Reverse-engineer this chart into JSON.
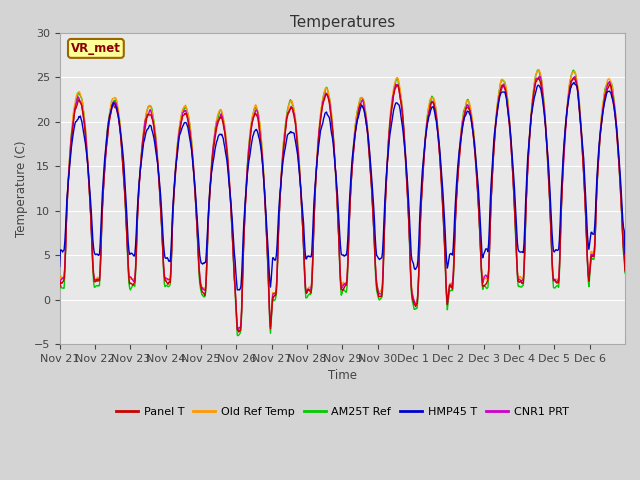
{
  "title": "Temperatures",
  "ylabel": "Temperature (C)",
  "xlabel": "Time",
  "ylim": [
    -5,
    30
  ],
  "plot_bg": "#e8e8e8",
  "fig_bg": "#d4d4d4",
  "series": [
    "Panel T",
    "Old Ref Temp",
    "AM25T Ref",
    "HMP45 T",
    "CNR1 PRT"
  ],
  "colors": [
    "#cc0000",
    "#ff9900",
    "#00cc00",
    "#0000cc",
    "#cc00cc"
  ],
  "linewidth": 1.0,
  "station_label": "VR_met",
  "x_tick_labels": [
    "Nov 21",
    "Nov 22",
    "Nov 23",
    "Nov 24",
    "Nov 25",
    "Nov 26",
    "Nov 27",
    "Nov 28",
    "Nov 29",
    "Nov 30",
    "Dec 1",
    "Dec 2",
    "Dec 3",
    "Dec 4",
    "Dec 5",
    "Dec 6"
  ],
  "num_days": 16,
  "daily_mins_base": [
    2.0,
    2.0,
    2.0,
    2.0,
    1.0,
    -3.5,
    0.5,
    1.0,
    1.5,
    0.5,
    -0.5,
    1.5,
    2.0,
    2.0,
    2.0,
    5.0
  ],
  "daily_maxes_base": [
    23.0,
    22.5,
    21.5,
    21.5,
    21.0,
    21.5,
    22.0,
    23.5,
    22.5,
    24.5,
    22.5,
    22.0,
    24.5,
    25.5,
    25.5,
    24.5
  ],
  "hmp45_mins": [
    5.5,
    5.0,
    5.0,
    4.5,
    4.0,
    1.0,
    4.5,
    5.0,
    5.0,
    4.5,
    3.5,
    5.0,
    5.5,
    5.5,
    5.5,
    7.5
  ],
  "hmp45_maxes": [
    20.5,
    22.0,
    19.5,
    20.0,
    18.5,
    19.0,
    19.0,
    21.0,
    21.5,
    22.0,
    21.5,
    21.0,
    23.5,
    24.0,
    24.5,
    23.5
  ]
}
